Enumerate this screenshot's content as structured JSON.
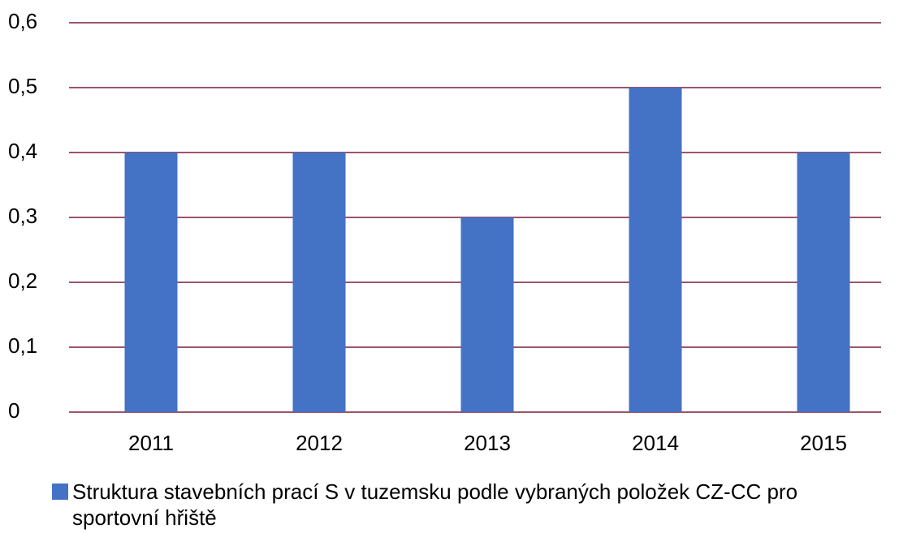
{
  "chart_data": {
    "type": "bar",
    "categories": [
      "2011",
      "2012",
      "2013",
      "2014",
      "2015"
    ],
    "series": [
      {
        "name": "Struktura stavebních prací S v tuzemsku podle vybraných položek CZ-CC pro sportovní hřiště",
        "color": "#4472c4",
        "values": [
          0.4,
          0.4,
          0.3,
          0.5,
          0.4
        ]
      }
    ],
    "ylim": [
      0,
      0.6
    ],
    "yticks": [
      0,
      {
        "value": 0.1,
        "label": "0,1"
      },
      {
        "value": 0.2,
        "label": "0,2"
      },
      {
        "value": 0.3,
        "label": "0,3"
      },
      {
        "value": 0.4,
        "label": "0,4"
      },
      {
        "value": 0.5,
        "label": "0,5"
      },
      {
        "value": 0.6,
        "label": "0,6"
      }
    ],
    "grid": true,
    "grid_color": "#7b1c3c",
    "legend": "bottom"
  }
}
